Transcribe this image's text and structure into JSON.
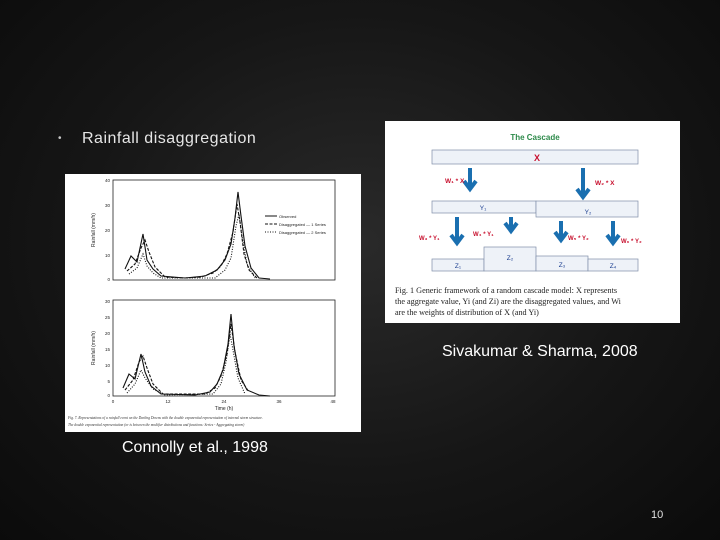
{
  "slide": {
    "bullet_symbol": "•",
    "bullet_text": "Rainfall disaggregation",
    "caption_left": "Connolly et al., 1998",
    "caption_right": "Sivakumar & Sharma, 2008",
    "page_number": "10"
  },
  "left_figure": {
    "top_ylabel": "Rainfall (mm/h)",
    "bottom_ylabel": "Rainfall (mm/h)",
    "xlabel": "Time (h)",
    "legend": [
      "Observed",
      "Disaggregated — 1 Series",
      "Disaggregated — 2 Series"
    ],
    "top_yticks": [
      "40",
      "30",
      "20",
      "10",
      "0"
    ],
    "bottom_yticks": [
      "30",
      "25",
      "20",
      "15",
      "10",
      "5",
      "0"
    ],
    "xticks": [
      "0",
      "12",
      "24",
      "36",
      "48"
    ],
    "caption_line1": "Fig. 7. Representations of a rainfall event on the Darling Downs with the double exponential representation of internal storm structure.",
    "caption_line2": "The double exponential representation (or is between the modifier distributions and functions: Series - Aggregating storm)"
  },
  "right_figure": {
    "title": "The Cascade",
    "x": "X",
    "w1x": "W₁ * X",
    "w2x": "W₂ * X",
    "y1": "Y₁",
    "y2": "Y₂",
    "w3y1": "W₃ * Y₁",
    "w4y1": "W₄ * Y₁",
    "w5y2": "W₅ * Y₂",
    "w6y2": "W₆ * Y₂",
    "z1": "Z₁",
    "z2": "Z₂",
    "z3": "Z₃",
    "z4": "Z₄",
    "caption_line1": "Fig. 1   Generic framework of a random cascade model: X represents",
    "caption_line2": "the aggregate value, Yi (and Zi) are the disaggregated values, and Wi",
    "caption_line3": "are the weights of distribution of X (and Yi)"
  },
  "colors": {
    "cascade_title": "#2d8a4a",
    "cascade_text": "#1a3d8f",
    "cascade_x": "#c8102e",
    "arrow": "#1a6fb0",
    "box_fill": "#eef2f8"
  }
}
